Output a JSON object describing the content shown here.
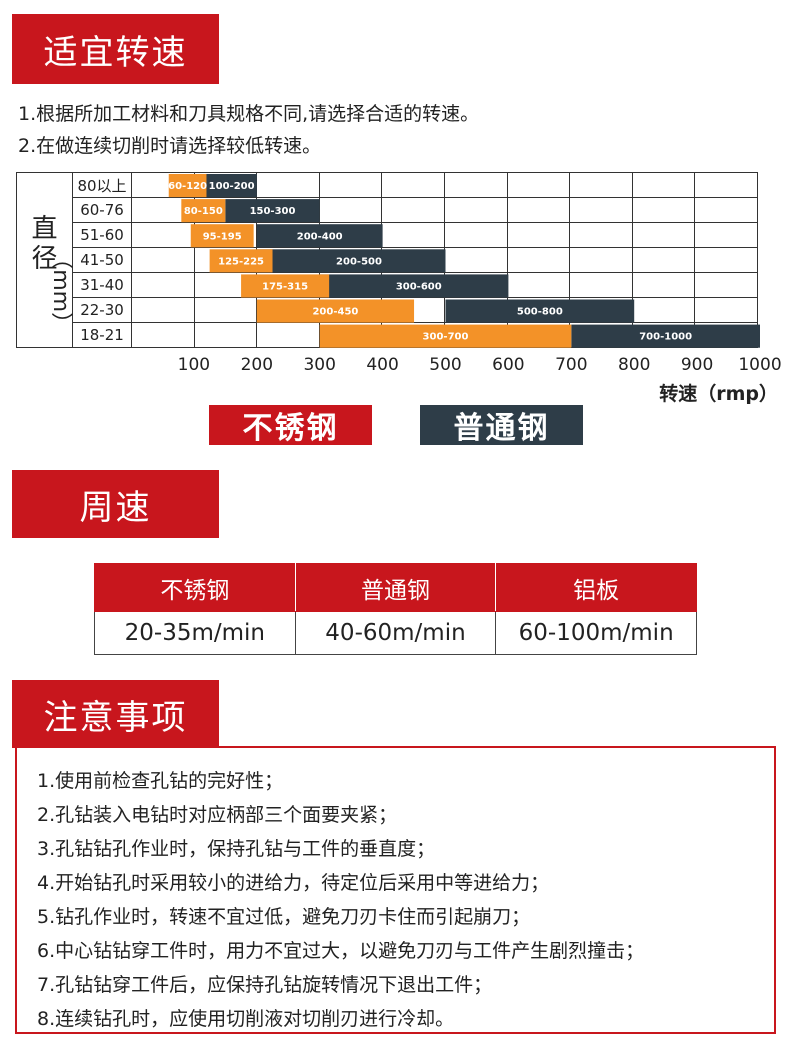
{
  "section1": {
    "title": "适宜转速",
    "notes": [
      "1.根据所加工材料和刀具规格不同,请选择合适的转速。",
      "2.在做连续切削时请选择较低转速。"
    ]
  },
  "chart_data": {
    "type": "bar",
    "ylabel": "直径（mm）",
    "xlabel": "转速（rmp）",
    "xticks": [
      "100",
      "200",
      "300",
      "400",
      "500",
      "600",
      "700",
      "800",
      "900",
      "1000"
    ],
    "xlim": [
      0,
      1000
    ],
    "categories": [
      "80以上",
      "60-76",
      "51-60",
      "41-50",
      "31-40",
      "22-30",
      "18-21"
    ],
    "series": [
      {
        "name": "不锈钢",
        "color": "#f39228",
        "ranges": [
          [
            60,
            120
          ],
          [
            80,
            150
          ],
          [
            95,
            195
          ],
          [
            125,
            225
          ],
          [
            175,
            315
          ],
          [
            200,
            450
          ],
          [
            300,
            700
          ]
        ],
        "labels": [
          "60-120",
          "80-150",
          "95-195",
          "125-225",
          "175-315",
          "200-450",
          "300-700"
        ]
      },
      {
        "name": "普通钢",
        "color": "#2e3d48",
        "ranges": [
          [
            100,
            200
          ],
          [
            150,
            300
          ],
          [
            200,
            400
          ],
          [
            200,
            500
          ],
          [
            300,
            600
          ],
          [
            500,
            800
          ],
          [
            700,
            1000
          ]
        ],
        "labels": [
          "100-200",
          "150-300",
          "200-400",
          "200-500",
          "300-600",
          "500-800",
          "700-1000"
        ]
      }
    ],
    "legend": [
      "不锈钢",
      "普通钢"
    ]
  },
  "legend": {
    "stainless": "不锈钢",
    "carbon": "普通钢"
  },
  "section2": {
    "title": "周速",
    "table": {
      "headers": [
        "不锈钢",
        "普通钢",
        "铝板"
      ],
      "values": [
        "20-35m/min",
        "40-60m/min",
        "60-100m/min"
      ]
    }
  },
  "section3": {
    "title": "注意事项",
    "items": [
      "1.使用前检查孔钻的完好性；",
      "2.孔钻装入电钻时对应柄部三个面要夹紧；",
      "3.孔钻钻孔作业时，保持孔钻与工件的垂直度；",
      "4.开始钻孔时采用较小的进给力，待定位后采用中等进给力；",
      "5.钻孔作业时，转速不宜过低，避免刀刃卡住而引起崩刀；",
      "6.中心钻钻穿工件时，用力不宜过大，以避免刀刃与工件产生剧烈撞击；",
      "7.孔钻钻穿工件后，应保持孔钻旋转情况下退出工件；",
      "8.连续钻孔时，应使用切削液对切削刃进行冷却。"
    ]
  },
  "colors": {
    "red": "#c8161d",
    "orange": "#f39228",
    "dark": "#2e3d48"
  }
}
